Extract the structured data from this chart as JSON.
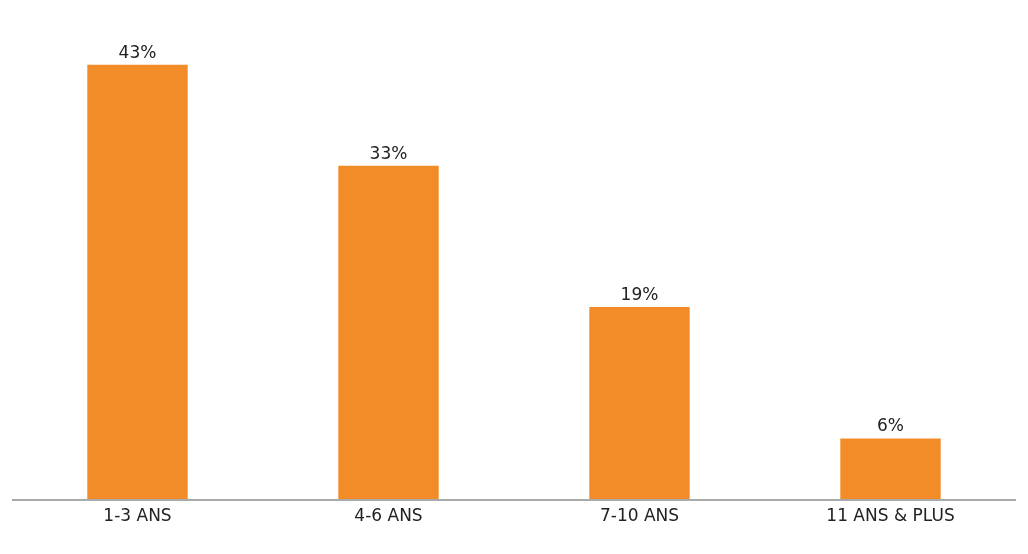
{
  "chart_data": {
    "type": "bar",
    "categories": [
      "1-3 ANS",
      "4-6 ANS",
      "7-10 ANS",
      "11 ANS & PLUS"
    ],
    "values": [
      43,
      33,
      19,
      6
    ],
    "value_labels": [
      "43%",
      "33%",
      "19%",
      "6%"
    ],
    "color": "#f28c28"
  }
}
